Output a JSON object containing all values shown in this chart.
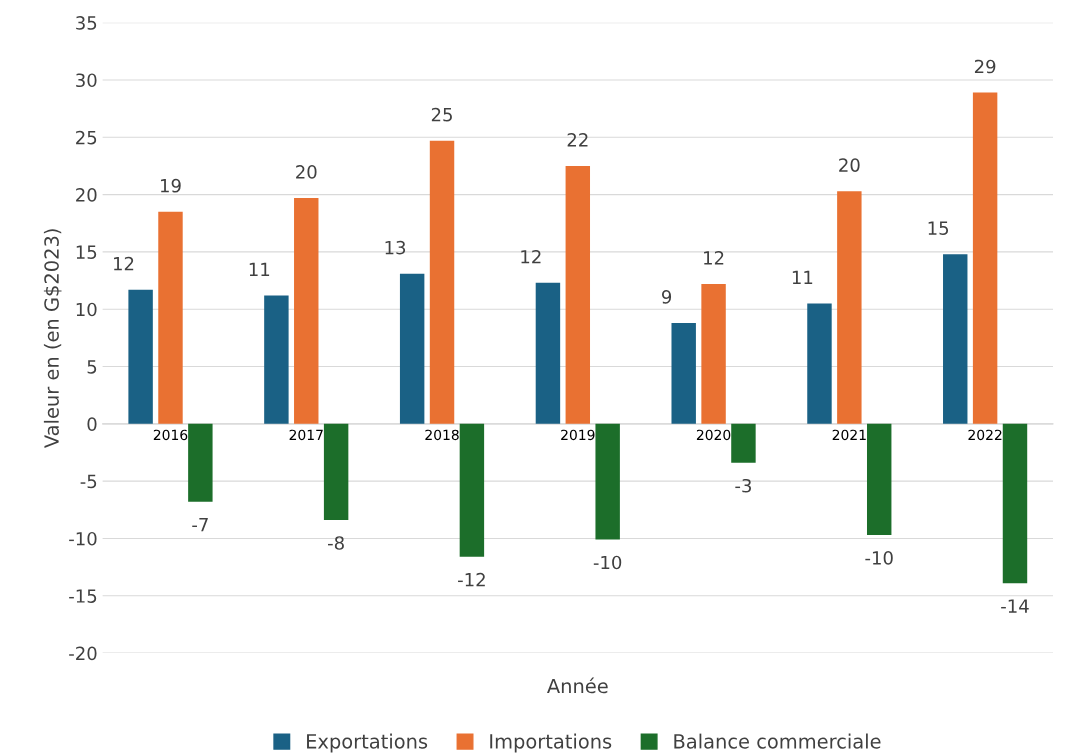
{
  "chart_data": {
    "type": "bar",
    "xlabel": "Année",
    "ylabel": "Valeur en (en G$2023)",
    "categories": [
      "2016",
      "2017",
      "2018",
      "2019",
      "2020",
      "2021",
      "2022"
    ],
    "series": [
      {
        "name": "Exportations",
        "color": "#1a6185",
        "values": [
          11.7,
          11.2,
          13.1,
          12.3,
          8.8,
          10.5,
          14.8
        ],
        "value_labels": [
          "12",
          "11",
          "13",
          "12",
          "9",
          "11",
          "15"
        ]
      },
      {
        "name": "Importations",
        "color": "#e97132",
        "values": [
          18.5,
          19.7,
          24.7,
          22.5,
          12.2,
          20.3,
          28.9
        ],
        "value_labels": [
          "19",
          "20",
          "25",
          "22",
          "12",
          "20",
          "29"
        ]
      },
      {
        "name": "Balance commerciale",
        "color": "#1c6e2a",
        "values": [
          -6.8,
          -8.4,
          -11.6,
          -10.1,
          -3.4,
          -9.7,
          -13.9
        ],
        "value_labels": [
          "-7",
          "-8",
          "-12",
          "-10",
          "-3",
          "-10",
          "-14"
        ]
      }
    ],
    "ylim": [
      -20,
      35
    ],
    "yticks": [
      -20,
      -15,
      -10,
      -5,
      0,
      5,
      10,
      15,
      20,
      25,
      30,
      35
    ],
    "grid": "y",
    "legend": "bottom"
  }
}
